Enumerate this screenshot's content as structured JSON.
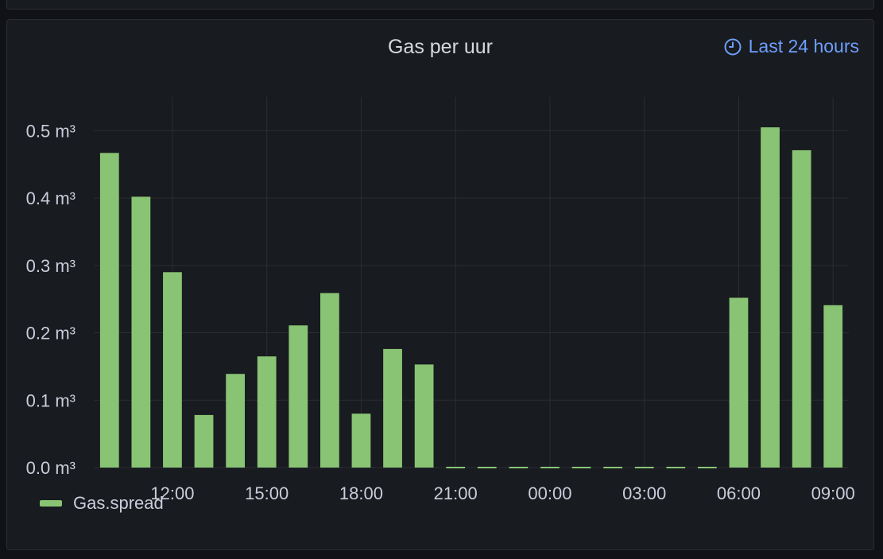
{
  "panel": {
    "title": "Gas per uur",
    "time_range": "Last 24 hours"
  },
  "colors": {
    "bar": "#89c474",
    "grid": "#2b2d33",
    "text": "#ccccdc",
    "accent": "#6e9fff"
  },
  "chart_data": {
    "type": "bar",
    "title": "Gas per uur",
    "ylim": [
      0,
      0.55
    ],
    "y_ticks": [
      "0.0 m³",
      "0.1 m³",
      "0.2 m³",
      "0.3 m³",
      "0.4 m³",
      "0.5 m³"
    ],
    "x_ticks": [
      "12:00",
      "15:00",
      "18:00",
      "21:00",
      "00:00",
      "03:00",
      "06:00",
      "09:00"
    ],
    "grid": true,
    "legend_position": "bottom-left",
    "categories": [
      "10:00",
      "11:00",
      "12:00",
      "13:00",
      "14:00",
      "15:00",
      "16:00",
      "17:00",
      "18:00",
      "19:00",
      "20:00",
      "21:00",
      "22:00",
      "23:00",
      "00:00",
      "01:00",
      "02:00",
      "03:00",
      "04:00",
      "05:00",
      "06:00",
      "07:00",
      "08:00",
      "09:00"
    ],
    "series": [
      {
        "name": "Gas.spread",
        "values": [
          0.467,
          0.402,
          0.29,
          0.078,
          0.139,
          0.165,
          0.211,
          0.259,
          0.08,
          0.176,
          0.153,
          0,
          0,
          0,
          0,
          0,
          0,
          0,
          0,
          0,
          0.252,
          0.505,
          0.471,
          0.241
        ]
      }
    ]
  }
}
